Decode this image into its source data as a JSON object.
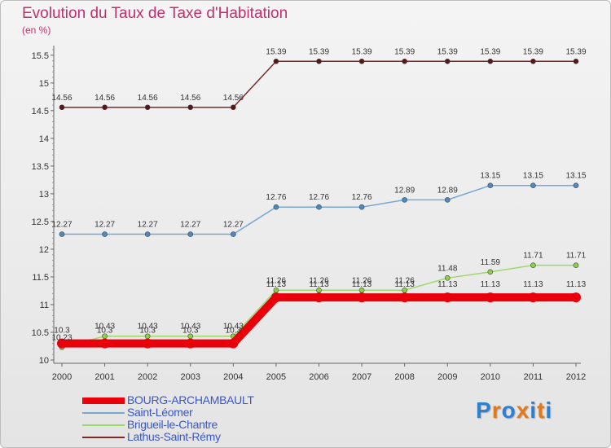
{
  "title": "Evolution du Taux de Taxe d'Habitation",
  "subtitle": "(en %)",
  "brand": "Proxiti",
  "chart_data": {
    "type": "line",
    "title": "Evolution du Taux de Taxe d'Habitation",
    "ylabel": "(en %)",
    "xlabel": "",
    "categories": [
      "2000",
      "2001",
      "2002",
      "2003",
      "2004",
      "2005",
      "2006",
      "2007",
      "2008",
      "2009",
      "2010",
      "2011",
      "2012"
    ],
    "ylim": [
      10,
      15.6
    ],
    "yticks": [
      "10",
      "10.5",
      "11",
      "11.5",
      "12",
      "12.5",
      "13",
      "13.5",
      "14",
      "14.5",
      "15",
      "15.5"
    ],
    "grid": false,
    "legend_position": "bottom-left",
    "series": [
      {
        "name": "BOURG-ARCHAMBAULT",
        "color": "#e8000b",
        "values": [
          10.3,
          10.3,
          10.3,
          10.3,
          10.3,
          11.13,
          11.13,
          11.13,
          11.13,
          11.13,
          11.13,
          11.13,
          11.13
        ],
        "labels": [
          "10.3",
          "10.3",
          "10.3",
          "10.3",
          "10.3",
          "11.13",
          "11.13",
          "11.13",
          "11.13",
          "11.13",
          "11.13",
          "11.13",
          "11.13"
        ]
      },
      {
        "name": "Saint-Léomer",
        "color": "#7aa7cf",
        "values": [
          12.27,
          12.27,
          12.27,
          12.27,
          12.27,
          12.76,
          12.76,
          12.76,
          12.89,
          12.89,
          13.15,
          13.15,
          13.15
        ],
        "labels": [
          "12.27",
          "12.27",
          "12.27",
          "12.27",
          "12.27",
          "12.76",
          "12.76",
          "12.76",
          "12.89",
          "12.89",
          "13.15",
          "13.15",
          "13.15"
        ]
      },
      {
        "name": "Brigueil-le-Chantre",
        "color": "#9dd86a",
        "values": [
          10.23,
          10.43,
          10.43,
          10.43,
          10.43,
          11.26,
          11.26,
          11.26,
          11.26,
          11.48,
          11.59,
          11.71,
          11.71
        ],
        "labels": [
          "10.23",
          "10.43",
          "10.43",
          "10.43",
          "10.43",
          "11.26",
          "11.26",
          "11.26",
          "11.26",
          "11.48",
          "11.59",
          "11.71",
          "11.71"
        ]
      },
      {
        "name": "Lathus-Saint-Rémy",
        "color": "#7a2a2a",
        "values": [
          14.56,
          14.56,
          14.56,
          14.56,
          14.56,
          15.39,
          15.39,
          15.39,
          15.39,
          15.39,
          15.39,
          15.39,
          15.39
        ],
        "labels": [
          "14.56",
          "14.56",
          "14.56",
          "14.56",
          "14.56",
          "15.39",
          "15.39",
          "15.39",
          "15.39",
          "15.39",
          "15.39",
          "15.39",
          "15.39"
        ]
      }
    ]
  }
}
